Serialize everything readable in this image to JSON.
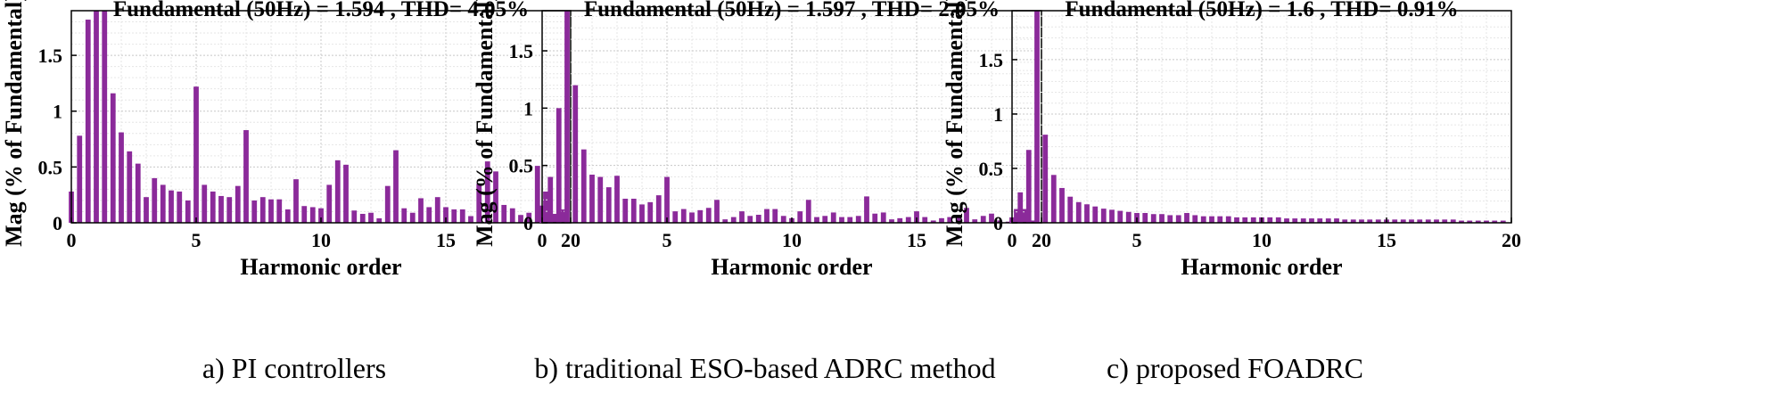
{
  "chart_data": [
    {
      "type": "bar",
      "title": "Fundamental (50Hz) = 1.594 , THD= 4.05%",
      "xlabel": "Harmonic order",
      "ylabel": "Mag (% of Fundamental)",
      "caption": "a) PI controllers",
      "xlim": [
        0,
        20
      ],
      "ylim": [
        0,
        1.9
      ],
      "xticks": [
        0,
        5,
        10,
        15,
        20
      ],
      "yticks": [
        0,
        0.5,
        1,
        1.5
      ],
      "ytick_labels": [
        "0",
        "0.5",
        "1",
        "1.5"
      ],
      "grid": true,
      "bar_color": "#8B2A9A",
      "x": [
        0,
        0.33,
        0.67,
        1,
        1.33,
        1.67,
        2,
        2.33,
        2.67,
        3,
        3.33,
        3.67,
        4,
        4.33,
        4.67,
        5,
        5.33,
        5.67,
        6,
        6.33,
        6.67,
        7,
        7.33,
        7.67,
        8,
        8.33,
        8.67,
        9,
        9.33,
        9.67,
        10,
        10.33,
        10.67,
        11,
        11.33,
        11.67,
        12,
        12.33,
        12.67,
        13,
        13.33,
        13.67,
        14,
        14.33,
        14.67,
        15,
        15.33,
        15.67,
        16,
        16.33,
        16.67,
        17,
        17.33,
        17.67,
        18,
        18.33,
        18.67,
        19,
        19.33,
        19.67
      ],
      "values": [
        0.28,
        0.78,
        1.82,
        1.9,
        1.9,
        1.16,
        0.81,
        0.64,
        0.53,
        0.23,
        0.4,
        0.34,
        0.29,
        0.28,
        0.2,
        1.22,
        0.34,
        0.28,
        0.24,
        0.23,
        0.33,
        0.83,
        0.2,
        0.23,
        0.21,
        0.21,
        0.12,
        0.39,
        0.15,
        0.14,
        0.13,
        0.34,
        0.56,
        0.52,
        0.11,
        0.08,
        0.09,
        0.04,
        0.33,
        0.65,
        0.13,
        0.09,
        0.22,
        0.14,
        0.23,
        0.14,
        0.12,
        0.12,
        0.06,
        0.35,
        0.55,
        0.46,
        0.16,
        0.13,
        0.07,
        0.09,
        0.51,
        0.28,
        0.08,
        0.12
      ]
    },
    {
      "type": "bar",
      "title": "Fundamental (50Hz) = 1.597 , THD= 2.05%",
      "xlabel": "Harmonic order",
      "ylabel": "Mag (% of Fundamental)",
      "caption": "b) traditional ESO-based ADRC method",
      "xlim": [
        0,
        20
      ],
      "ylim": [
        0,
        1.85
      ],
      "xticks": [
        0,
        5,
        10,
        15,
        20
      ],
      "yticks": [
        0,
        0.5,
        1,
        1.5
      ],
      "ytick_labels": [
        "0",
        "0.5",
        "1",
        "1.5"
      ],
      "grid": true,
      "bar_color": "#8B2A9A",
      "x": [
        0,
        0.33,
        0.67,
        1,
        1.33,
        1.67,
        2,
        2.33,
        2.67,
        3,
        3.33,
        3.67,
        4,
        4.33,
        4.67,
        5,
        5.33,
        5.67,
        6,
        6.33,
        6.67,
        7,
        7.33,
        7.67,
        8,
        8.33,
        8.67,
        9,
        9.33,
        9.67,
        10,
        10.33,
        10.67,
        11,
        11.33,
        11.67,
        12,
        12.33,
        12.67,
        13,
        13.33,
        13.67,
        14,
        14.33,
        14.67,
        15,
        15.33,
        15.67,
        16,
        16.33,
        16.67,
        17,
        17.33,
        17.67,
        18,
        18.33,
        18.67,
        19,
        19.33,
        19.67
      ],
      "values": [
        0.15,
        0.4,
        1.0,
        1.85,
        1.2,
        0.64,
        0.42,
        0.4,
        0.31,
        0.41,
        0.21,
        0.21,
        0.16,
        0.18,
        0.24,
        0.4,
        0.1,
        0.12,
        0.09,
        0.11,
        0.13,
        0.2,
        0.03,
        0.05,
        0.1,
        0.06,
        0.07,
        0.12,
        0.12,
        0.06,
        0.04,
        0.1,
        0.2,
        0.05,
        0.06,
        0.09,
        0.05,
        0.05,
        0.06,
        0.23,
        0.08,
        0.09,
        0.03,
        0.04,
        0.05,
        0.1,
        0.05,
        0.02,
        0.04,
        0.05,
        0.06,
        0.13,
        0.03,
        0.06,
        0.08,
        0.02,
        0.01,
        0.12,
        0.12,
        0.02
      ]
    },
    {
      "type": "bar",
      "title": "Fundamental (50Hz) = 1.6 , THD= 0.91%",
      "xlabel": "Harmonic order",
      "ylabel": "Mag (% of Fundamental)",
      "caption": "c) proposed FOADRC",
      "xlim": [
        0,
        20
      ],
      "ylim": [
        0,
        1.95
      ],
      "xticks": [
        0,
        5,
        10,
        15,
        20
      ],
      "yticks": [
        0,
        0.5,
        1,
        1.5
      ],
      "ytick_labels": [
        "0",
        "0.5",
        "1",
        "1.5"
      ],
      "grid": true,
      "bar_color": "#8B2A9A",
      "x": [
        0,
        0.33,
        0.67,
        1,
        1.33,
        1.67,
        2,
        2.33,
        2.67,
        3,
        3.33,
        3.67,
        4,
        4.33,
        4.67,
        5,
        5.33,
        5.67,
        6,
        6.33,
        6.67,
        7,
        7.33,
        7.67,
        8,
        8.33,
        8.67,
        9,
        9.33,
        9.67,
        10,
        10.33,
        10.67,
        11,
        11.33,
        11.67,
        12,
        12.33,
        12.67,
        13,
        13.33,
        13.67,
        14,
        14.33,
        14.67,
        15,
        15.33,
        15.67,
        16,
        16.33,
        16.67,
        17,
        17.33,
        17.67,
        18,
        18.33,
        18.67,
        19,
        19.33,
        19.67
      ],
      "values": [
        0.05,
        0.28,
        0.67,
        1.95,
        0.81,
        0.44,
        0.32,
        0.24,
        0.19,
        0.17,
        0.15,
        0.13,
        0.12,
        0.11,
        0.1,
        0.09,
        0.09,
        0.08,
        0.08,
        0.07,
        0.07,
        0.09,
        0.07,
        0.06,
        0.06,
        0.06,
        0.06,
        0.05,
        0.05,
        0.05,
        0.05,
        0.05,
        0.05,
        0.04,
        0.04,
        0.04,
        0.04,
        0.04,
        0.04,
        0.04,
        0.03,
        0.03,
        0.03,
        0.03,
        0.03,
        0.03,
        0.03,
        0.03,
        0.03,
        0.03,
        0.03,
        0.03,
        0.03,
        0.03,
        0.02,
        0.02,
        0.02,
        0.02,
        0.02,
        0.02
      ]
    }
  ]
}
